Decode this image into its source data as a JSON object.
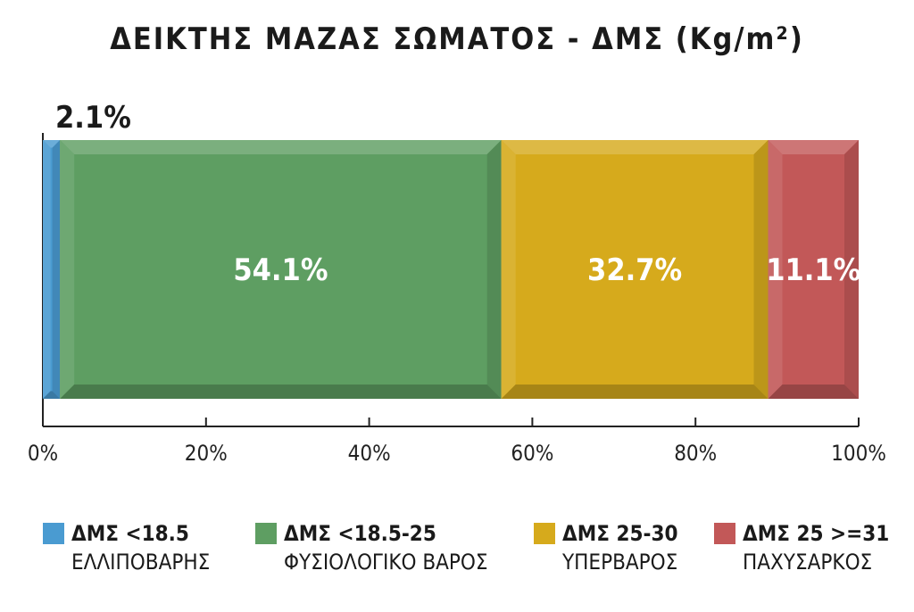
{
  "chart_data": {
    "type": "bar",
    "orientation": "horizontal-stacked",
    "title": "ΔΕΙΚΤΗΣ ΜΑΖΑΣ ΣΩΜΑΤΟΣ - ΔΜΣ (Kg/m²)",
    "xlim": [
      0,
      100
    ],
    "x_ticks": [
      "0%",
      "20%",
      "40%",
      "60%",
      "80%",
      "100%"
    ],
    "x_tick_values": [
      0,
      20,
      40,
      60,
      80,
      100
    ],
    "series": [
      {
        "label": "2.1%",
        "value": 2.1,
        "color": "#4a9bd1",
        "legend_title": "ΔΜΣ <18.5",
        "legend_sub": "ΕΛΛΙΠΟΒΑΡΗΣ"
      },
      {
        "label": "54.1%",
        "value": 54.1,
        "color": "#5e9e62",
        "legend_title": "ΔΜΣ <18.5-25",
        "legend_sub": "ΦΥΣΙΟΛΟΓΙΚΟ ΒΑΡΟΣ"
      },
      {
        "label": "32.7%",
        "value": 32.7,
        "color": "#d6aa1c",
        "legend_title": "ΔΜΣ 25-30",
        "legend_sub": "ΥΠΕΡΒΑΡΟΣ"
      },
      {
        "label": "11.1%",
        "value": 11.1,
        "color": "#c25858",
        "legend_title": "ΔΜΣ 25 >=31",
        "legend_sub": "ΠΑΧΥΣΑΡΚΟΣ"
      }
    ],
    "legend_position": "bottom"
  }
}
